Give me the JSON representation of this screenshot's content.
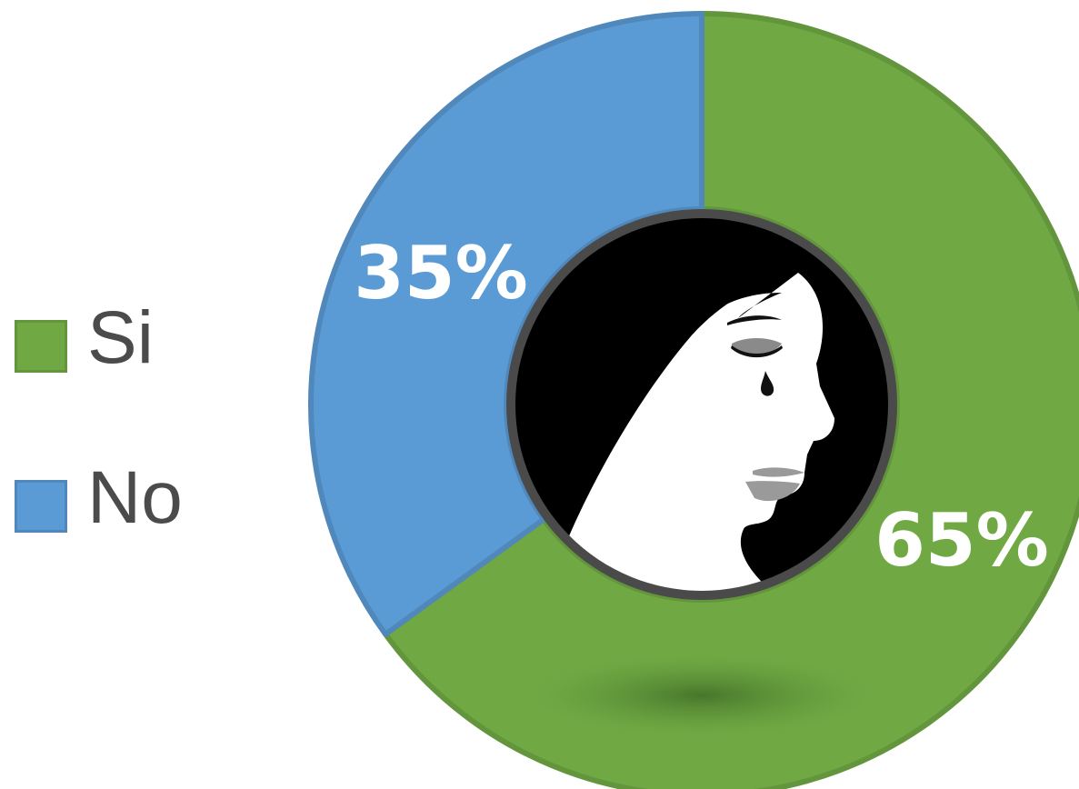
{
  "chart_data": {
    "type": "pie",
    "donut": true,
    "categories": [
      "Si",
      "No"
    ],
    "values": [
      65,
      35
    ],
    "labels": [
      "65%",
      "35%"
    ],
    "colors": [
      "#70a944",
      "#5b9bd5"
    ],
    "legend_position": "left",
    "center_image": "crying-woman-silhouette-icon"
  }
}
